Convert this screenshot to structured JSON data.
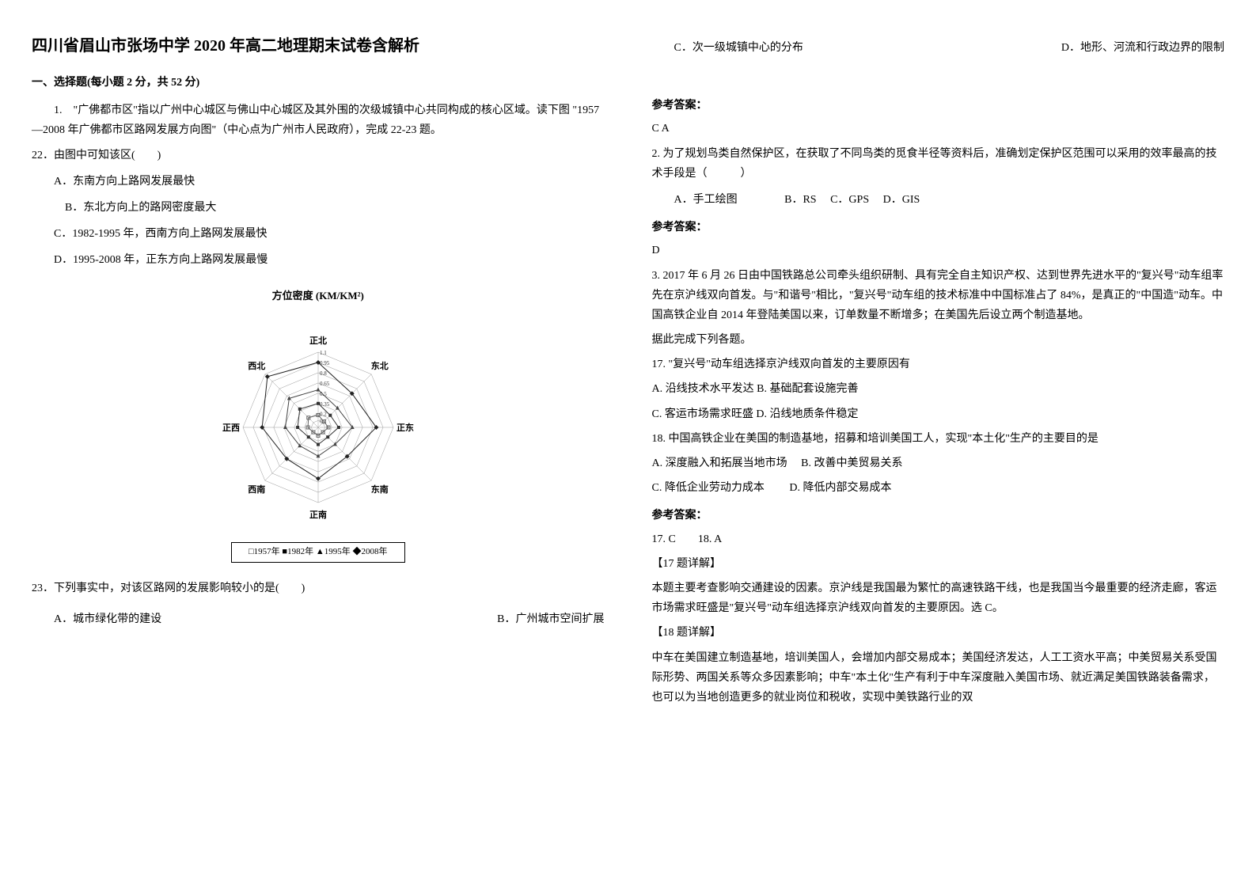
{
  "title": "四川省眉山市张场中学 2020 年高二地理期末试卷含解析",
  "section1": {
    "header": "一、选择题(每小题 2 分，共 52 分)",
    "q1": {
      "stem": "1.　\"广佛都市区\"指以广州中心城区与佛山中心城区及其外围的次级城镇中心共同构成的核心区域。读下图 \"1957—2008 年广佛都市区路网发展方向图\"（中心点为广州市人民政府），完成 22-23 题。",
      "q22": {
        "text": "22．由图中可知该区(　　)",
        "optA": "A．东南方向上路网发展最快",
        "optB": "B．东北方向上的路网密度最大",
        "optC": "C．1982-1995 年，西南方向上路网发展最快",
        "optD": "D．1995-2008 年，正东方向上路网发展最慢"
      },
      "chart": {
        "title": "方位密度 (KM/KM²)",
        "directions": [
          "正北",
          "东北",
          "正东",
          "东南",
          "正南",
          "西南",
          "正西",
          "西北"
        ],
        "rings": [
          0.1,
          0.2,
          0.35,
          0.5,
          0.65,
          0.8,
          0.95,
          1.1
        ],
        "ring_labels": [
          "0.1",
          "0.2",
          "0.35",
          "0.5",
          "0.65",
          "0.8",
          "0.95",
          "1.1"
        ],
        "legend_items": [
          "□1957年",
          "■1982年",
          "▲1995年",
          "◆2008年"
        ],
        "series": {
          "1957": {
            "values": [
              0.18,
              0.12,
              0.15,
              0.1,
              0.12,
              0.1,
              0.15,
              0.2
            ],
            "marker": "square-open",
            "color": "#666666"
          },
          "1982": {
            "values": [
              0.35,
              0.25,
              0.3,
              0.2,
              0.25,
              0.2,
              0.3,
              0.38
            ],
            "marker": "square-filled",
            "color": "#333333"
          },
          "1995": {
            "values": [
              0.55,
              0.4,
              0.5,
              0.35,
              0.42,
              0.38,
              0.48,
              0.6
            ],
            "marker": "triangle",
            "color": "#444444"
          },
          "2008": {
            "values": [
              0.95,
              0.7,
              0.85,
              0.6,
              0.75,
              0.65,
              0.82,
              1.05
            ],
            "marker": "diamond",
            "color": "#222222"
          }
        },
        "grid_color": "#999999",
        "background_color": "#ffffff",
        "label_fontsize": 11
      },
      "q23": {
        "text": "23．下列事实中，对该区路网的发展影响较小的是(　　)",
        "optA": "A．城市绿化带的建设",
        "optB": "B．广州城市空间扩展",
        "optC": "C．次一级城镇中心的分布",
        "optD": "D．地形、河流和行政边界的限制"
      },
      "answer_label": "参考答案：",
      "answer": "C A"
    },
    "q2": {
      "text": "2. 为了规划鸟类自然保护区，在获取了不同鸟类的觅食半径等资料后，准确划定保护区范围可以采用的效率最高的技术手段是（　　　）",
      "optA": "A．手工绘图",
      "optB": "B．RS",
      "optC": "C．GPS",
      "optD": "D．GIS",
      "answer_label": "参考答案：",
      "answer": "D"
    },
    "q3": {
      "stem": "3. 2017 年 6 月 26 日由中国铁路总公司牵头组织研制、具有完全自主知识产权、达到世界先进水平的\"复兴号\"动车组率先在京沪线双向首发。与\"和谐号\"相比，\"复兴号\"动车组的技术标准中中国标准占了 84%，是真正的\"中国造\"动车。中国高铁企业自 2014 年登陆美国以来，订单数量不断增多；在美国先后设立两个制造基地。",
      "stem2": "据此完成下列各题。",
      "q17": {
        "text": "17. \"复兴号\"动车组选择京沪线双向首发的主要原因有",
        "optA": "A. 沿线技术水平发达",
        "optB": "B. 基础配套设施完善",
        "optC": "C. 客运市场需求旺盛",
        "optD": "D. 沿线地质条件稳定"
      },
      "q18": {
        "text": "18. 中国高铁企业在美国的制造基地，招募和培训美国工人，实现\"本土化\"生产的主要目的是",
        "optA": "A. 深度融入和拓展当地市场",
        "optB": "B. 改善中美贸易关系",
        "optC": "C. 降低企业劳动力成本",
        "optD": "D. 降低内部交易成本"
      },
      "answer_label": "参考答案：",
      "answer": "17. C　　18. A",
      "exp17_label": "【17 题详解】",
      "exp17": "本题主要考查影响交通建设的因素。京沪线是我国最为繁忙的高速铁路干线，也是我国当今最重要的经济走廊，客运市场需求旺盛是\"复兴号\"动车组选择京沪线双向首发的主要原因。选 C。",
      "exp18_label": "【18 题详解】",
      "exp18": "中车在美国建立制造基地，培训美国人，会增加内部交易成本；美国经济发达，人工工资水平高；中美贸易关系受国际形势、两国关系等众多因素影响；中车\"本土化\"生产有利于中车深度融入美国市场、就近满足美国铁路装备需求，也可以为当地创造更多的就业岗位和税收，实现中美铁路行业的双"
    }
  }
}
